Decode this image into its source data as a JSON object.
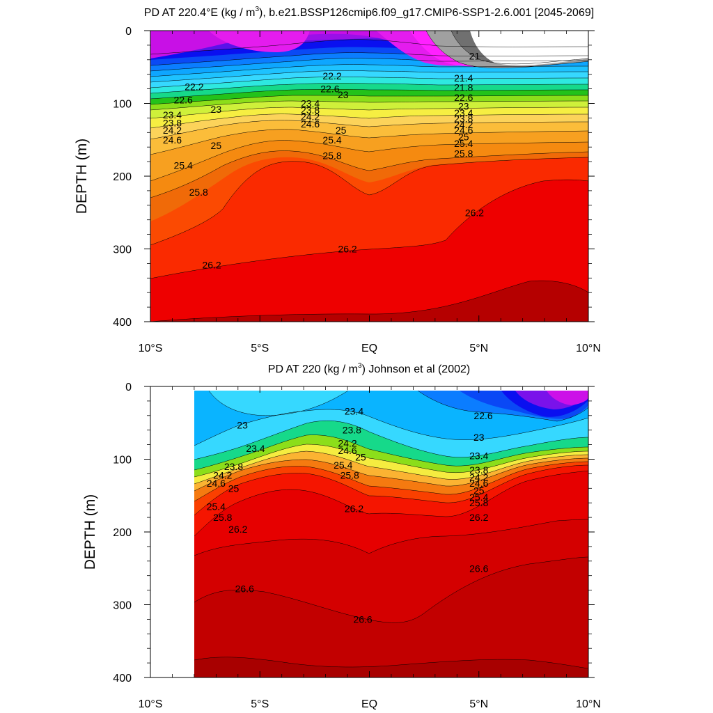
{
  "chart_data": [
    {
      "type": "contour",
      "title": "PD AT 220.4°E (kg / m3), b.e21.BSSP126cmip6.f09_g17.CMIP6-SSP1-2.6.001 [2045-2069]",
      "ylabel": "DEPTH (m)",
      "xlim": [
        -10,
        10
      ],
      "ylim": [
        0,
        400
      ],
      "y_reversed": true,
      "x_ticks": [
        -10,
        -5,
        0,
        5,
        10
      ],
      "x_tick_labels": [
        "10°S",
        "5°S",
        "EQ",
        "5°N",
        "10°N"
      ],
      "y_ticks": [
        0,
        100,
        200,
        300,
        400
      ],
      "y_tick_labels": [
        "0",
        "100",
        "200",
        "300",
        "400"
      ],
      "data_x_range": [
        -10,
        10
      ],
      "contour_labels": [
        {
          "value": "21",
          "x": 4.8,
          "y": 35
        },
        {
          "value": "21.4",
          "x": 4.3,
          "y": 65
        },
        {
          "value": "21.8",
          "x": 4.3,
          "y": 78
        },
        {
          "value": "22.2",
          "x": -8.0,
          "y": 77
        },
        {
          "value": "22.2",
          "x": -1.7,
          "y": 62
        },
        {
          "value": "22.6",
          "x": -8.5,
          "y": 95
        },
        {
          "value": "22.6",
          "x": -1.8,
          "y": 80
        },
        {
          "value": "22.6",
          "x": 4.3,
          "y": 92
        },
        {
          "value": "23",
          "x": -7.0,
          "y": 108
        },
        {
          "value": "23",
          "x": -1.2,
          "y": 88
        },
        {
          "value": "23",
          "x": 4.3,
          "y": 104
        },
        {
          "value": "23.4",
          "x": -9.0,
          "y": 116
        },
        {
          "value": "23.4",
          "x": -2.7,
          "y": 100
        },
        {
          "value": "23.4",
          "x": 4.3,
          "y": 113
        },
        {
          "value": "23.8",
          "x": -9.0,
          "y": 127
        },
        {
          "value": "23.8",
          "x": -2.7,
          "y": 109
        },
        {
          "value": "23.8",
          "x": 4.3,
          "y": 121
        },
        {
          "value": "24.2",
          "x": -9.0,
          "y": 137
        },
        {
          "value": "24.2",
          "x": -2.7,
          "y": 118
        },
        {
          "value": "24.2",
          "x": 4.3,
          "y": 129
        },
        {
          "value": "24.6",
          "x": -9.0,
          "y": 150
        },
        {
          "value": "24.6",
          "x": -2.7,
          "y": 128
        },
        {
          "value": "24.6",
          "x": 4.3,
          "y": 137
        },
        {
          "value": "25",
          "x": -7.0,
          "y": 158
        },
        {
          "value": "25",
          "x": -1.3,
          "y": 137
        },
        {
          "value": "25",
          "x": 4.3,
          "y": 146
        },
        {
          "value": "25.4",
          "x": -8.5,
          "y": 185
        },
        {
          "value": "25.4",
          "x": -1.7,
          "y": 150
        },
        {
          "value": "25.4",
          "x": 4.3,
          "y": 155
        },
        {
          "value": "25.8",
          "x": -7.8,
          "y": 222
        },
        {
          "value": "25.8",
          "x": -1.7,
          "y": 172
        },
        {
          "value": "25.8",
          "x": 4.3,
          "y": 169
        },
        {
          "value": "26.2",
          "x": -7.2,
          "y": 322
        },
        {
          "value": "26.2",
          "x": -1.0,
          "y": 300
        },
        {
          "value": "26.2",
          "x": 4.8,
          "y": 250
        }
      ]
    },
    {
      "type": "contour",
      "title": "PD AT 220 (kg / m3) Johnson et al (2002)",
      "ylabel": "DEPTH (m)",
      "xlim": [
        -10,
        10
      ],
      "ylim": [
        0,
        400
      ],
      "y_reversed": true,
      "x_ticks": [
        -10,
        -5,
        0,
        5,
        10
      ],
      "x_tick_labels": [
        "10°S",
        "5°S",
        "EQ",
        "5°N",
        "10°N"
      ],
      "y_ticks": [
        0,
        100,
        200,
        300,
        400
      ],
      "y_tick_labels": [
        "0",
        "100",
        "200",
        "300",
        "400"
      ],
      "data_x_range": [
        -8,
        10
      ],
      "contour_labels": [
        {
          "value": "23",
          "x": -5.8,
          "y": 53
        },
        {
          "value": "23.4",
          "x": -5.2,
          "y": 85
        },
        {
          "value": "23.4",
          "x": -0.7,
          "y": 34
        },
        {
          "value": "23.8",
          "x": -6.2,
          "y": 110
        },
        {
          "value": "23.8",
          "x": -0.8,
          "y": 60
        },
        {
          "value": "24.2",
          "x": -6.7,
          "y": 122
        },
        {
          "value": "24.2",
          "x": -1.0,
          "y": 78
        },
        {
          "value": "24.6",
          "x": -7.0,
          "y": 133
        },
        {
          "value": "24.6",
          "x": -1.0,
          "y": 88
        },
        {
          "value": "25",
          "x": -6.2,
          "y": 140
        },
        {
          "value": "25",
          "x": -0.4,
          "y": 97
        },
        {
          "value": "25.4",
          "x": -7.0,
          "y": 165
        },
        {
          "value": "25.4",
          "x": -1.2,
          "y": 108
        },
        {
          "value": "25.8",
          "x": -6.7,
          "y": 180
        },
        {
          "value": "25.8",
          "x": -0.9,
          "y": 122
        },
        {
          "value": "26.2",
          "x": -6.0,
          "y": 196
        },
        {
          "value": "26.2",
          "x": -0.7,
          "y": 168
        },
        {
          "value": "26.2",
          "x": 5.0,
          "y": 180
        },
        {
          "value": "22.6",
          "x": 5.2,
          "y": 40
        },
        {
          "value": "23",
          "x": 5.0,
          "y": 70
        },
        {
          "value": "23.4",
          "x": 5.0,
          "y": 95
        },
        {
          "value": "23.8",
          "x": 5.0,
          "y": 115
        },
        {
          "value": "24.2",
          "x": 5.0,
          "y": 125
        },
        {
          "value": "24.6",
          "x": 5.0,
          "y": 133
        },
        {
          "value": "25",
          "x": 5.0,
          "y": 143
        },
        {
          "value": "25.4",
          "x": 5.0,
          "y": 152
        },
        {
          "value": "25.8",
          "x": 5.0,
          "y": 160
        },
        {
          "value": "26.6",
          "x": -5.7,
          "y": 278
        },
        {
          "value": "26.6",
          "x": -0.3,
          "y": 320
        },
        {
          "value": "26.6",
          "x": 5.0,
          "y": 250
        }
      ]
    }
  ]
}
